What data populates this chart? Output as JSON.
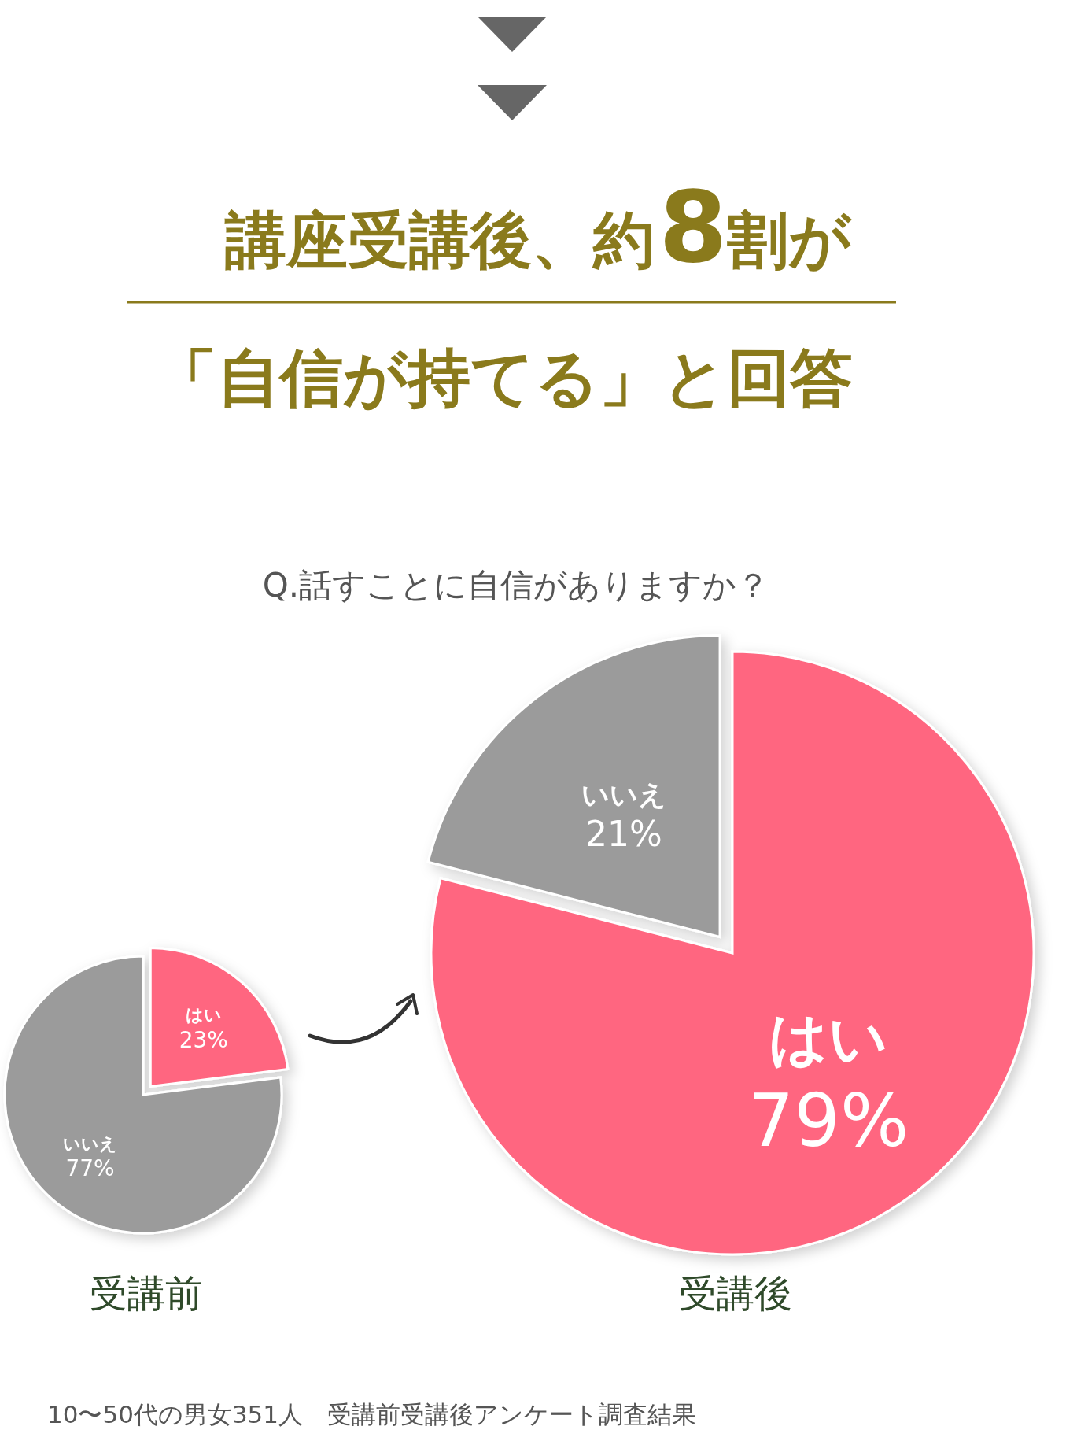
{
  "chart_data": [
    {
      "type": "other",
      "title": "講座受講後、約8割が",
      "subtitle": "「自信が持てる」と回答",
      "annotations": [
        "Q.話すことに自信がありますか？",
        "10〜50代の男女351人　受講前受講後アンケート調査結果"
      ]
    },
    {
      "type": "pie",
      "xlabel": "受講前",
      "categories": [
        "はい",
        "いいえ"
      ],
      "values": [
        23,
        77
      ],
      "value_labels": [
        "23%",
        "77%"
      ],
      "colors": [
        "#ff6680",
        "#9b9b9b"
      ]
    },
    {
      "type": "pie",
      "xlabel": "受講後",
      "categories": [
        "はい",
        "いいえ"
      ],
      "values": [
        79,
        21
      ],
      "value_labels": [
        "79%",
        "21%"
      ],
      "colors": [
        "#ff6680",
        "#9b9b9b"
      ]
    }
  ]
}
